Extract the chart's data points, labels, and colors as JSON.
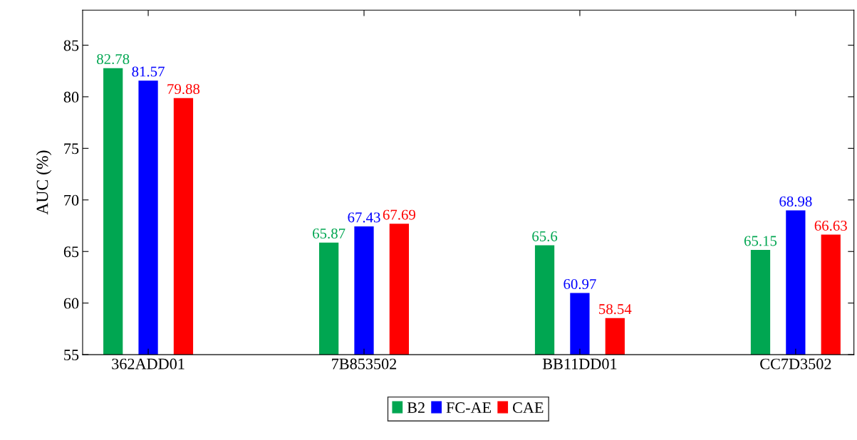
{
  "chart_data": {
    "type": "bar",
    "ylabel": "AUC (%)",
    "categories": [
      "362ADD01",
      "7B853502",
      "BB11DD01",
      "CC7D3502"
    ],
    "series": [
      {
        "name": "B2",
        "color": "#00a651",
        "values": [
          82.78,
          65.87,
          65.6,
          65.15
        ]
      },
      {
        "name": "FC-AE",
        "color": "#0000ff",
        "values": [
          81.57,
          67.43,
          60.97,
          68.98
        ]
      },
      {
        "name": "CAE",
        "color": "#ff0000",
        "values": [
          79.88,
          67.69,
          58.54,
          66.63
        ]
      }
    ],
    "ylim": [
      55,
      88.4
    ],
    "yticks": [
      55,
      60,
      65,
      70,
      75,
      80,
      85
    ],
    "data_labels": true,
    "legend": "bottom",
    "grid": false
  }
}
